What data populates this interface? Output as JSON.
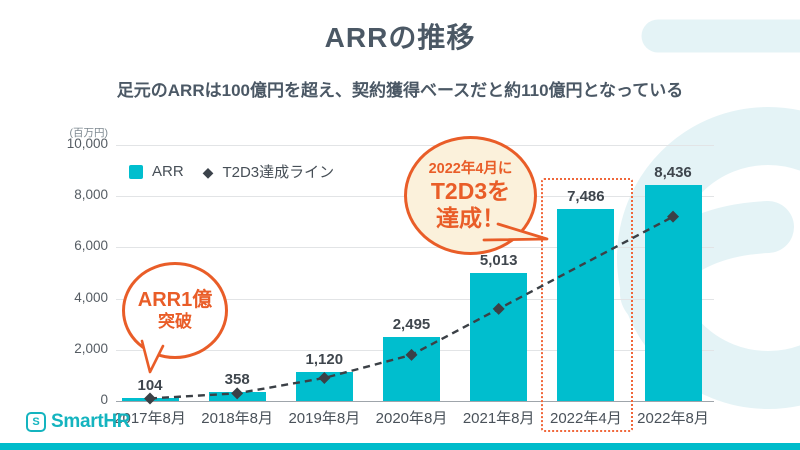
{
  "slide": {
    "title": "ARRの推移",
    "subtitle": "足元のARRは100億円を超え、契約獲得ベースだと約110億円となっている"
  },
  "chart_data": {
    "type": "bar",
    "title": "ARRの推移",
    "unit_label": "(百万円)",
    "categories": [
      "2017年8月",
      "2018年8月",
      "2019年8月",
      "2020年8月",
      "2021年8月",
      "2022年4月",
      "2022年8月"
    ],
    "series": [
      {
        "name": "ARR",
        "type": "bar",
        "color": "#00BECE",
        "values": [
          104,
          358,
          1120,
          2495,
          5013,
          7486,
          8436
        ]
      },
      {
        "name": "T2D3達成ライン",
        "type": "dashed-line-diamond",
        "color": "#3B4046",
        "categories": [
          "2017年8月",
          "2018年8月",
          "2019年8月",
          "2020年8月",
          "2021年8月",
          "2022年8月"
        ],
        "values": [
          100,
          300,
          900,
          1800,
          3600,
          7200
        ]
      }
    ],
    "bar_labels": [
      "104",
      "358",
      "1,120",
      "2,495",
      "5,013",
      "7,486",
      "8,436"
    ],
    "ylim": [
      0,
      10000
    ],
    "ytick_values": [
      10000,
      8000,
      6000,
      4000,
      2000,
      0
    ],
    "yticks": [
      "10,000",
      "8,000",
      "6,000",
      "4,000",
      "2,000",
      "0"
    ],
    "grid": true,
    "legend_position": "inside-top-left",
    "highlight_category": "2022年4月"
  },
  "callouts": {
    "arr_100m": {
      "line1": "ARR1億",
      "line2": "突破"
    },
    "t2d3": {
      "line1": "2022年4月に",
      "line2": "T2D3を",
      "line3": "達成！"
    }
  },
  "footer": {
    "logo_letter": "S",
    "logo_text": "SmartHR"
  },
  "colors": {
    "bar_teal": "#00BECE",
    "brand_teal": "#14B4BF",
    "accent_orange": "#E95D28",
    "highlight_dotted_orange": "#F0673B",
    "callout_cream": "#FBF1DB",
    "title_gray": "#4B5865",
    "line_dark": "#3B4046",
    "watermark_teal": "#E4F3F6"
  }
}
